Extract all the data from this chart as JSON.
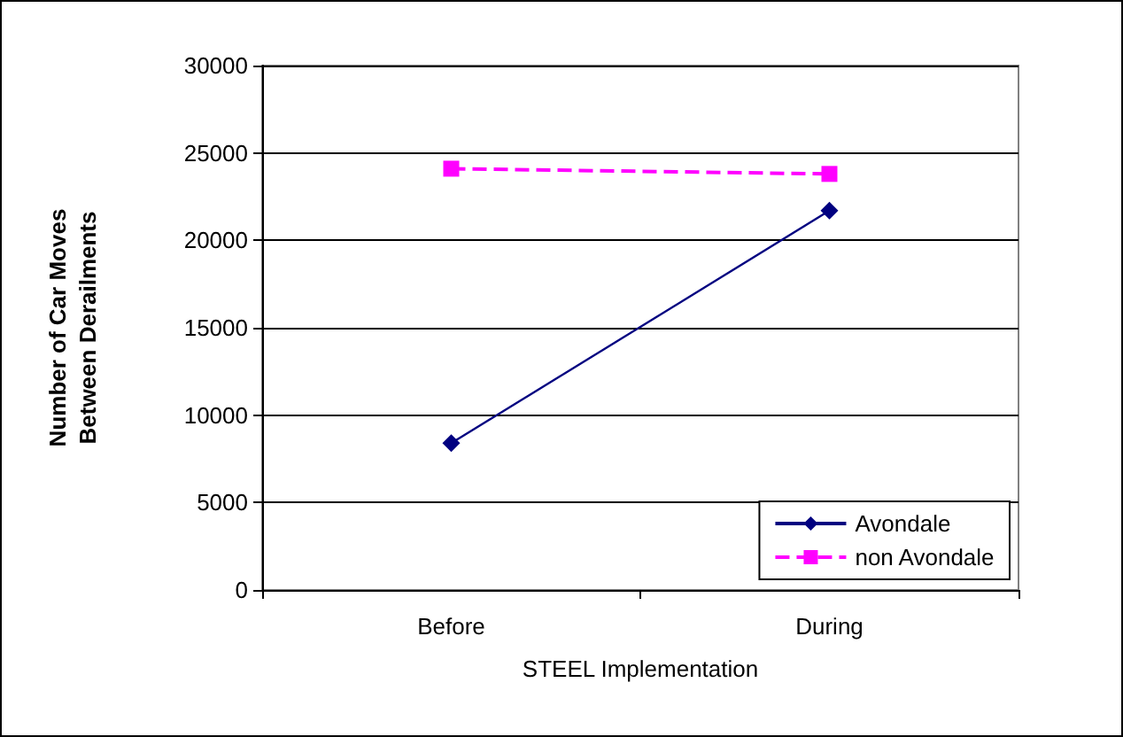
{
  "chart_data": {
    "type": "line",
    "xlabel": "STEEL Implementation",
    "ylabel": "Number of Car Moves\nBetween Derailments",
    "categories": [
      "Before",
      "During"
    ],
    "series": [
      {
        "name": "Avondale",
        "color": "#000080",
        "values": [
          8400,
          21700
        ],
        "marker": "diamond",
        "line_style": "solid"
      },
      {
        "name": "non Avondale",
        "color": "#ff00ff",
        "values": [
          24100,
          23800
        ],
        "marker": "square",
        "line_style": "dashed"
      }
    ],
    "ylim": [
      0,
      30000
    ],
    "yticks": [
      0,
      5000,
      10000,
      15000,
      20000,
      25000,
      30000
    ],
    "grid": "y",
    "legend": "bottom right"
  }
}
